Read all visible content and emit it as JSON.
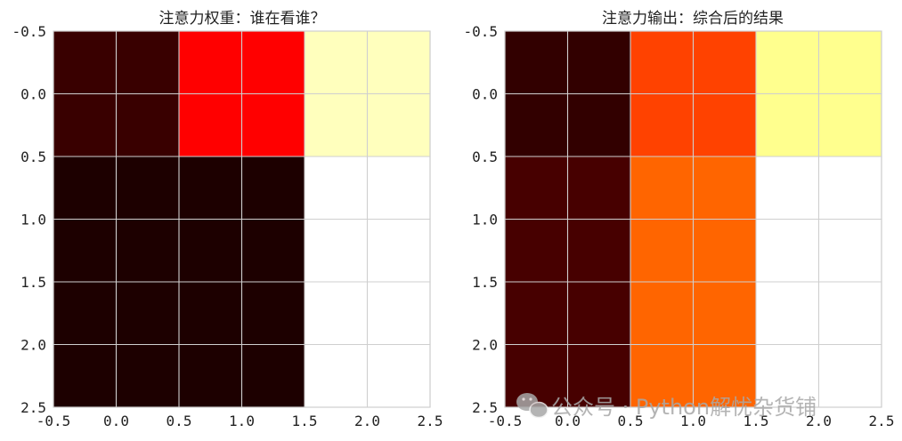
{
  "chart_data": [
    {
      "type": "heatmap",
      "title": "注意力权重：谁在看谁？",
      "xlim": [
        -0.5,
        2.5
      ],
      "ylim": [
        2.5,
        -0.5
      ],
      "xticks": [
        "-0.5",
        "0.0",
        "0.5",
        "1.0",
        "1.5",
        "2.0",
        "2.5"
      ],
      "yticks": [
        "-0.5",
        "0.0",
        "0.5",
        "1.0",
        "1.5",
        "2.0",
        "2.5"
      ],
      "x_tick_values": [
        -0.5,
        0.0,
        0.5,
        1.0,
        1.5,
        2.0,
        2.5
      ],
      "y_tick_values": [
        -0.5,
        0.0,
        0.5,
        1.0,
        1.5,
        2.0,
        2.5
      ],
      "colormap": "hot",
      "grid": true,
      "values": [
        [
          0.04,
          0.33,
          0.93
        ],
        [
          0.0,
          0.0,
          1.0
        ],
        [
          0.0,
          0.0,
          1.0
        ]
      ]
    },
    {
      "type": "heatmap",
      "title": "注意力输出：综合后的结果",
      "xlim": [
        -0.5,
        2.5
      ],
      "ylim": [
        2.5,
        -0.5
      ],
      "xticks": [
        "-0.5",
        "0.0",
        "0.5",
        "1.0",
        "1.5",
        "2.0",
        "2.5"
      ],
      "yticks": [
        "-0.5",
        "0.0",
        "0.5",
        "1.0",
        "1.5",
        "2.0",
        "2.5"
      ],
      "x_tick_values": [
        -0.5,
        0.0,
        0.5,
        1.0,
        1.5,
        2.0,
        2.5
      ],
      "y_tick_values": [
        -0.5,
        0.0,
        0.5,
        1.0,
        1.5,
        2.0,
        2.5
      ],
      "colormap": "hot",
      "grid": true,
      "values": [
        [
          0.03,
          0.46,
          0.88
        ],
        [
          0.06,
          0.51,
          1.0
        ],
        [
          0.06,
          0.51,
          1.0
        ]
      ]
    }
  ],
  "watermark": {
    "text": "公众号 · Python解忧杂货铺",
    "icon": "wechat-icon"
  }
}
